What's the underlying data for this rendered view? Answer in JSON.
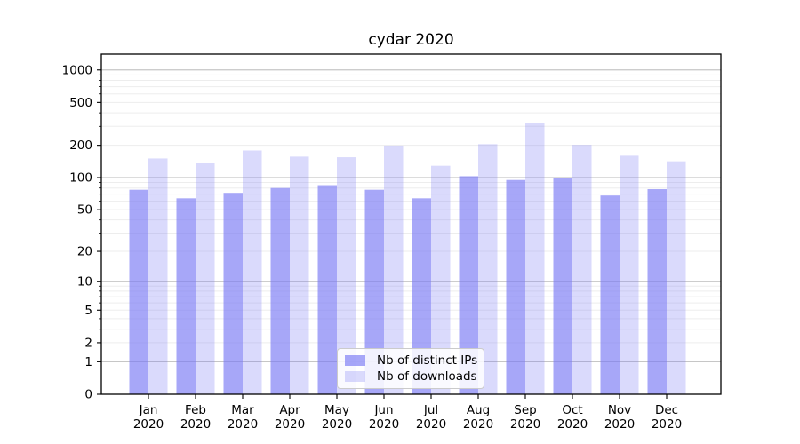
{
  "chart_data": {
    "type": "bar",
    "title": "cydar 2020",
    "categories": [
      "Jan 2020",
      "Feb 2020",
      "Mar 2020",
      "Apr 2020",
      "May 2020",
      "Jun 2020",
      "Jul 2020",
      "Aug 2020",
      "Sep 2020",
      "Oct 2020",
      "Nov 2020",
      "Dec 2020"
    ],
    "series": [
      {
        "name": "Nb of distinct IPs",
        "color_base": "#7878f5",
        "opacity": 0.65,
        "values": [
          77,
          64,
          72,
          80,
          85,
          77,
          64,
          103,
          95,
          100,
          68,
          78
        ]
      },
      {
        "name": "Nb of downloads",
        "color_base": "#7878f5",
        "opacity": 0.27,
        "values": [
          151,
          137,
          179,
          157,
          155,
          199,
          129,
          205,
          324,
          202,
          160,
          142
        ]
      }
    ],
    "xlabel": "",
    "ylabel": "",
    "yscale": "log1p",
    "ylim": [
      0,
      1400
    ],
    "yticks": [
      0,
      1,
      2,
      5,
      10,
      20,
      50,
      100,
      200,
      500,
      1000
    ],
    "grid": "both",
    "legend_position": "lower center"
  },
  "colors": {
    "major_grid": "#c6c6c6",
    "minor_grid": "#ededed",
    "axis": "#000000",
    "text": "#000000",
    "background": "#ffffff"
  }
}
